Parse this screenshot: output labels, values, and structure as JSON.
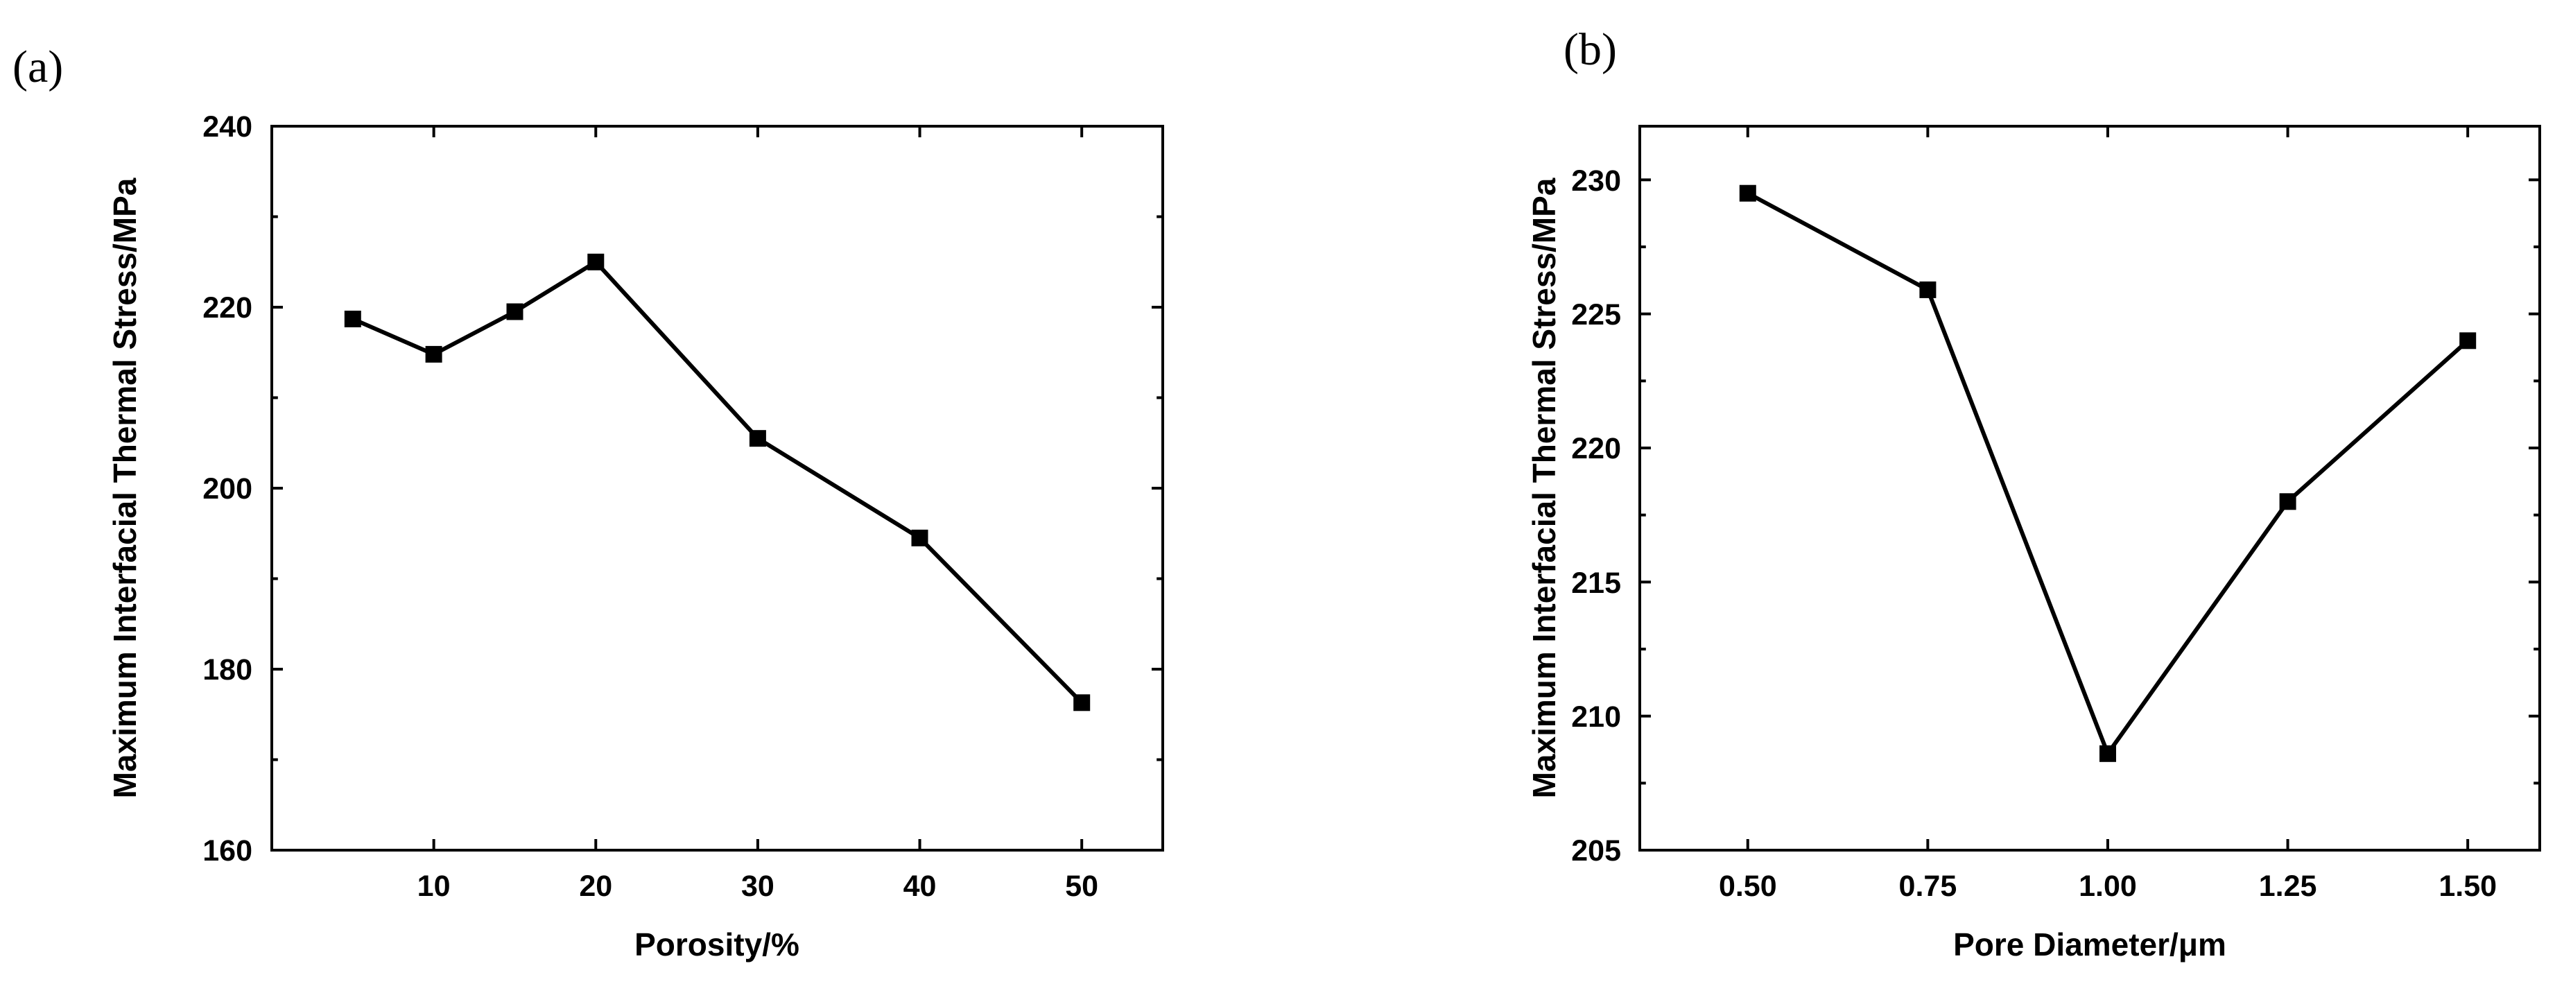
{
  "chart_data": [
    {
      "type": "line",
      "panel_label": "(a)",
      "title": "",
      "xlabel": "Porosity/%",
      "ylabel": "Maximum Interfacial Thermal Stress/MPa",
      "x": [
        5,
        10,
        15,
        20,
        30,
        40,
        50
      ],
      "xlim": [
        0,
        55
      ],
      "ylim": [
        160,
        240
      ],
      "xticks": [
        10,
        20,
        30,
        40,
        50
      ],
      "xtick_labels": [
        "10",
        "20",
        "30",
        "40",
        "50"
      ],
      "yticks": [
        160,
        180,
        200,
        220,
        240
      ],
      "ytick_labels": [
        "160",
        "180",
        "200",
        "220",
        "240"
      ],
      "series": [
        {
          "name": "Maximum Interfacial Thermal Stress",
          "values": [
            218.7,
            214.8,
            219.5,
            225.0,
            205.5,
            194.5,
            176.3
          ],
          "color": "#000000",
          "marker": "square"
        }
      ],
      "grid": false,
      "legend": "none"
    },
    {
      "type": "line",
      "panel_label": "(b)",
      "title": "",
      "xlabel": "Pore Diameter/μm",
      "ylabel": "Maximum Interfacial Thermal Stress/MPa",
      "x": [
        0.5,
        0.75,
        1.0,
        1.25,
        1.5
      ],
      "xlim": [
        0.35,
        1.6
      ],
      "ylim": [
        205,
        232
      ],
      "xticks": [
        0.5,
        0.75,
        1.0,
        1.25,
        1.5
      ],
      "xtick_labels": [
        "0.50",
        "0.75",
        "1.00",
        "1.25",
        "1.50"
      ],
      "yticks": [
        205,
        210,
        215,
        220,
        225,
        230
      ],
      "ytick_labels": [
        "205",
        "210",
        "215",
        "220",
        "225",
        "230"
      ],
      "series": [
        {
          "name": "Maximum Interfacial Thermal Stress",
          "values": [
            229.5,
            225.9,
            208.6,
            218.0,
            224.0
          ],
          "color": "#000000",
          "marker": "square"
        }
      ],
      "grid": false,
      "legend": "none"
    }
  ]
}
